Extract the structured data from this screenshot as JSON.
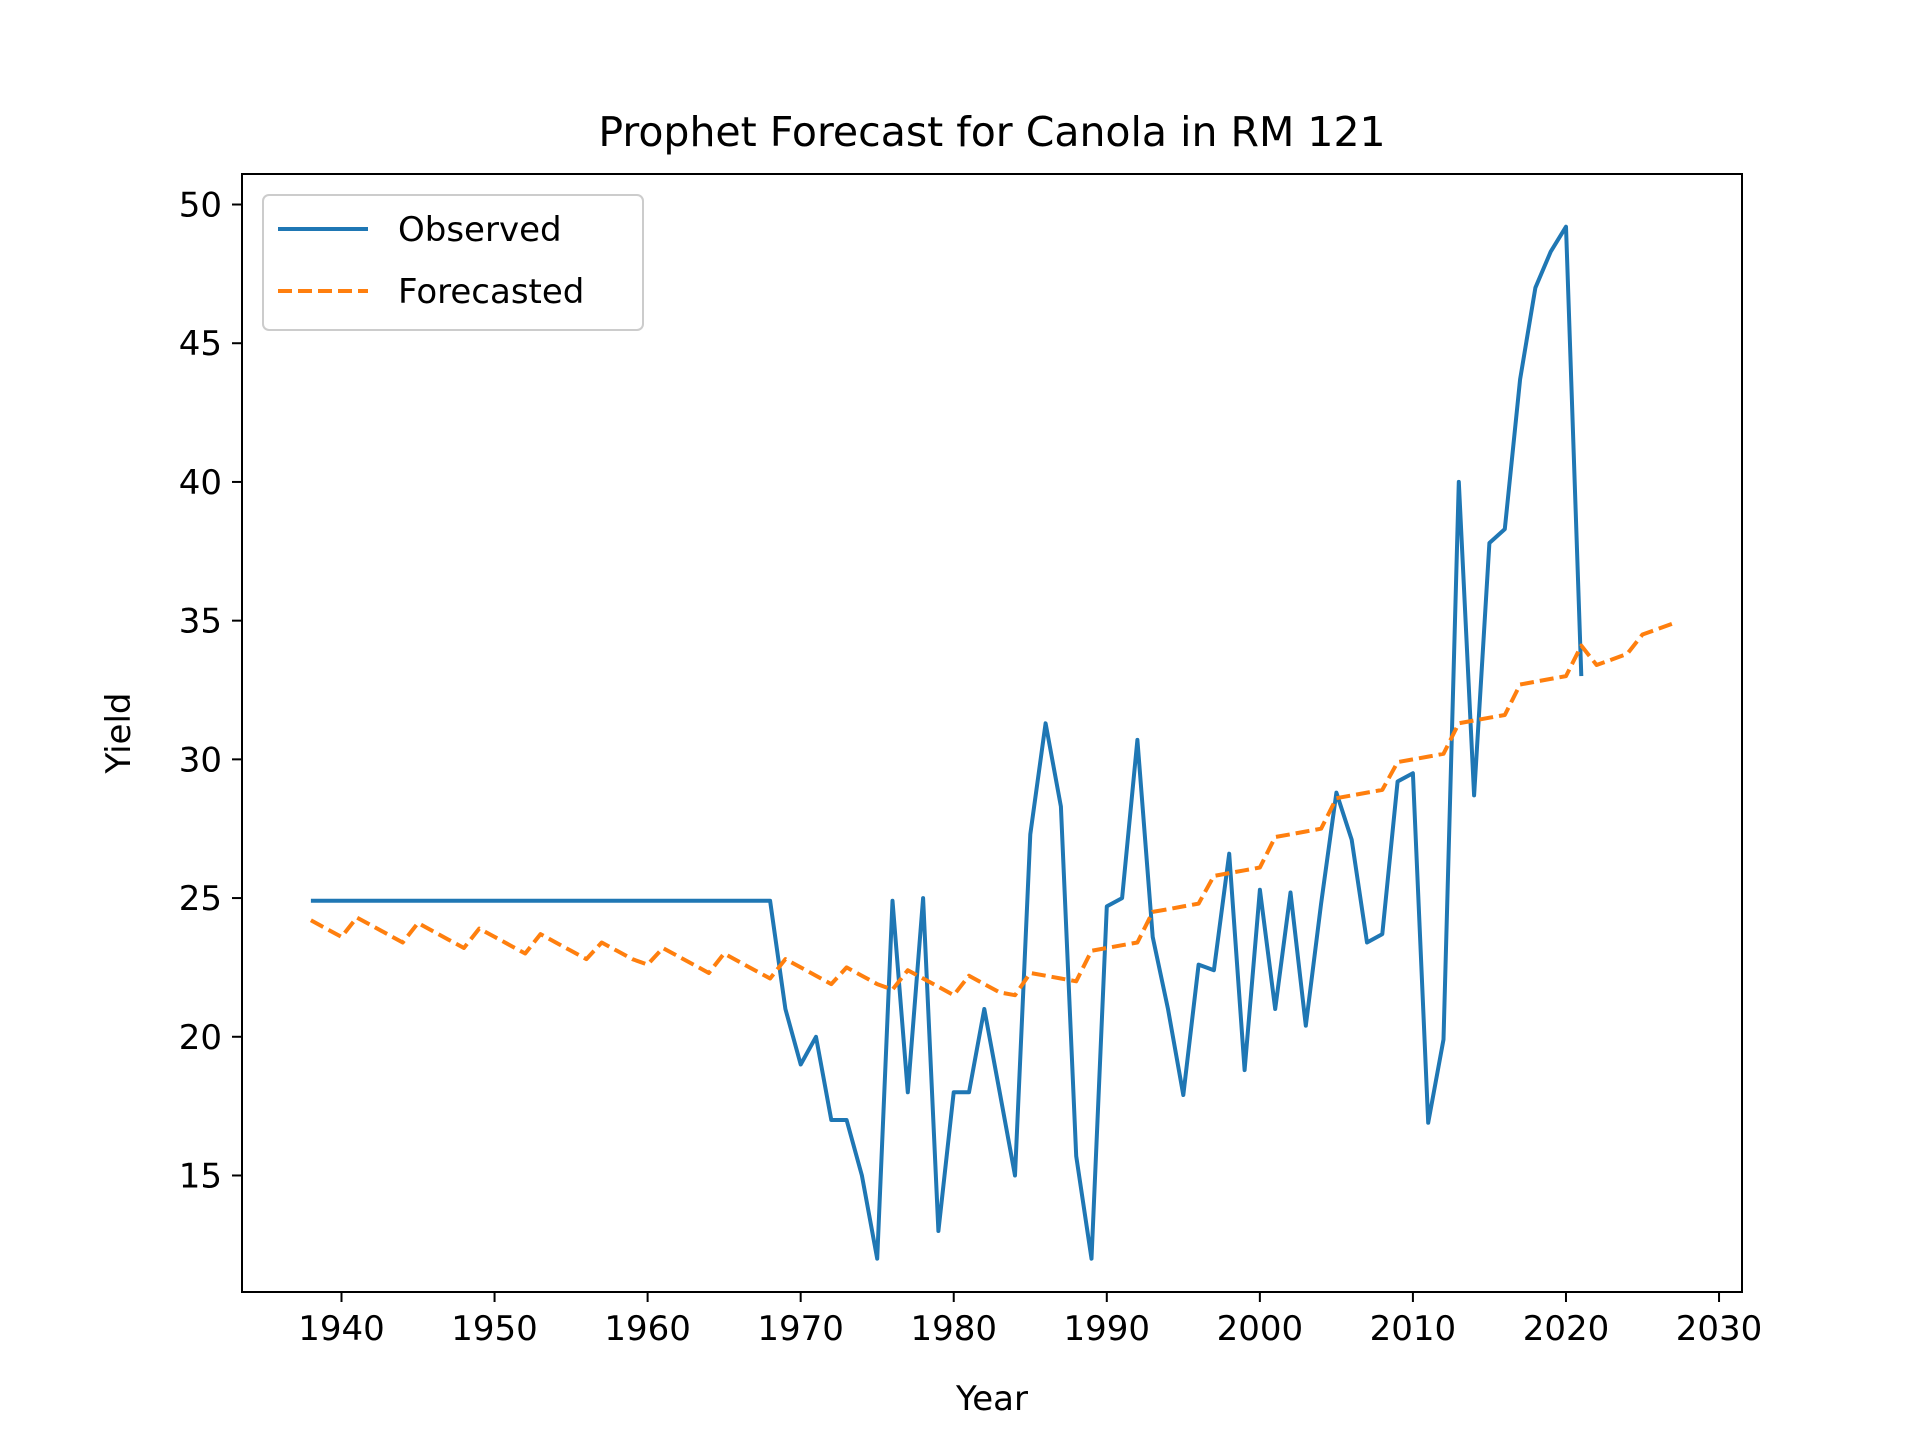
{
  "chart_data": {
    "type": "line",
    "title": "Prophet Forecast for Canola in RM 121",
    "xlabel": "Year",
    "ylabel": "Yield",
    "xlim": [
      1933.5,
      2031.5
    ],
    "ylim": [
      10.8,
      51.1
    ],
    "xticks": [
      1940,
      1950,
      1960,
      1970,
      1980,
      1990,
      2000,
      2010,
      2020,
      2030
    ],
    "yticks": [
      15,
      20,
      25,
      30,
      35,
      40,
      45,
      50
    ],
    "grid": false,
    "legend_position": "upper-left",
    "series": [
      {
        "name": "Observed",
        "color": "#1f77b4",
        "style": "solid",
        "x": [
          1938,
          1939,
          1940,
          1941,
          1942,
          1943,
          1944,
          1945,
          1946,
          1947,
          1948,
          1949,
          1950,
          1951,
          1952,
          1953,
          1954,
          1955,
          1956,
          1957,
          1958,
          1959,
          1960,
          1961,
          1962,
          1963,
          1964,
          1965,
          1966,
          1967,
          1968,
          1969,
          1970,
          1971,
          1972,
          1973,
          1974,
          1975,
          1976,
          1977,
          1978,
          1979,
          1980,
          1981,
          1982,
          1983,
          1984,
          1985,
          1986,
          1987,
          1988,
          1989,
          1990,
          1991,
          1992,
          1993,
          1994,
          1995,
          1996,
          1997,
          1998,
          1999,
          2000,
          2001,
          2002,
          2003,
          2004,
          2005,
          2006,
          2007,
          2008,
          2009,
          2010,
          2011,
          2012,
          2013,
          2014,
          2015,
          2016,
          2017,
          2018,
          2019,
          2020,
          2021
        ],
        "y": [
          24.9,
          24.9,
          24.9,
          24.9,
          24.9,
          24.9,
          24.9,
          24.9,
          24.9,
          24.9,
          24.9,
          24.9,
          24.9,
          24.9,
          24.9,
          24.9,
          24.9,
          24.9,
          24.9,
          24.9,
          24.9,
          24.9,
          24.9,
          24.9,
          24.9,
          24.9,
          24.9,
          24.9,
          24.9,
          24.9,
          24.9,
          21.0,
          19.0,
          20.0,
          17.0,
          17.0,
          15.0,
          12.0,
          24.9,
          18.0,
          25.0,
          13.0,
          18.0,
          18.0,
          21.0,
          18.0,
          15.0,
          27.3,
          31.3,
          28.3,
          15.7,
          12.0,
          24.7,
          25.0,
          30.7,
          23.6,
          21.0,
          17.9,
          22.6,
          22.4,
          26.6,
          18.8,
          25.3,
          21.0,
          25.2,
          20.4,
          24.8,
          28.8,
          27.1,
          23.4,
          23.7,
          29.2,
          29.5,
          16.9,
          19.9,
          40.0,
          28.7,
          37.8,
          38.3,
          43.7,
          47.0,
          48.3,
          49.2,
          33.0
        ]
      },
      {
        "name": "Forecasted",
        "color": "#ff7f0e",
        "style": "dashed",
        "x": [
          1938,
          1939,
          1940,
          1941,
          1942,
          1943,
          1944,
          1945,
          1946,
          1947,
          1948,
          1949,
          1950,
          1951,
          1952,
          1953,
          1954,
          1955,
          1956,
          1957,
          1958,
          1959,
          1960,
          1961,
          1962,
          1963,
          1964,
          1965,
          1966,
          1967,
          1968,
          1969,
          1970,
          1971,
          1972,
          1973,
          1974,
          1975,
          1976,
          1977,
          1978,
          1979,
          1980,
          1981,
          1982,
          1983,
          1984,
          1985,
          1986,
          1987,
          1988,
          1989,
          1990,
          1991,
          1992,
          1993,
          1994,
          1995,
          1996,
          1997,
          1998,
          1999,
          2000,
          2001,
          2002,
          2003,
          2004,
          2005,
          2006,
          2007,
          2008,
          2009,
          2010,
          2011,
          2012,
          2013,
          2014,
          2015,
          2016,
          2017,
          2018,
          2019,
          2020,
          2021,
          2022,
          2023,
          2024,
          2025,
          2026,
          2027
        ],
        "y": [
          24.2,
          23.9,
          23.6,
          24.3,
          24.0,
          23.7,
          23.4,
          24.1,
          23.8,
          23.5,
          23.2,
          23.9,
          23.6,
          23.3,
          23.0,
          23.7,
          23.4,
          23.1,
          22.8,
          23.4,
          23.1,
          22.8,
          22.6,
          23.2,
          22.9,
          22.6,
          22.3,
          23.0,
          22.7,
          22.4,
          22.1,
          22.8,
          22.5,
          22.2,
          21.9,
          22.5,
          22.2,
          21.9,
          21.7,
          22.4,
          22.1,
          21.8,
          21.5,
          22.2,
          21.9,
          21.6,
          21.5,
          22.3,
          22.2,
          22.1,
          22.0,
          23.1,
          23.2,
          23.3,
          23.4,
          24.5,
          24.6,
          24.7,
          24.8,
          25.8,
          25.9,
          26.0,
          26.1,
          27.2,
          27.3,
          27.4,
          27.5,
          28.6,
          28.7,
          28.8,
          28.9,
          29.9,
          30.0,
          30.1,
          30.2,
          31.3,
          31.4,
          31.5,
          31.6,
          32.7,
          32.8,
          32.9,
          33.0,
          34.1,
          33.4,
          33.6,
          33.8,
          34.5,
          34.7,
          34.9
        ]
      }
    ]
  }
}
